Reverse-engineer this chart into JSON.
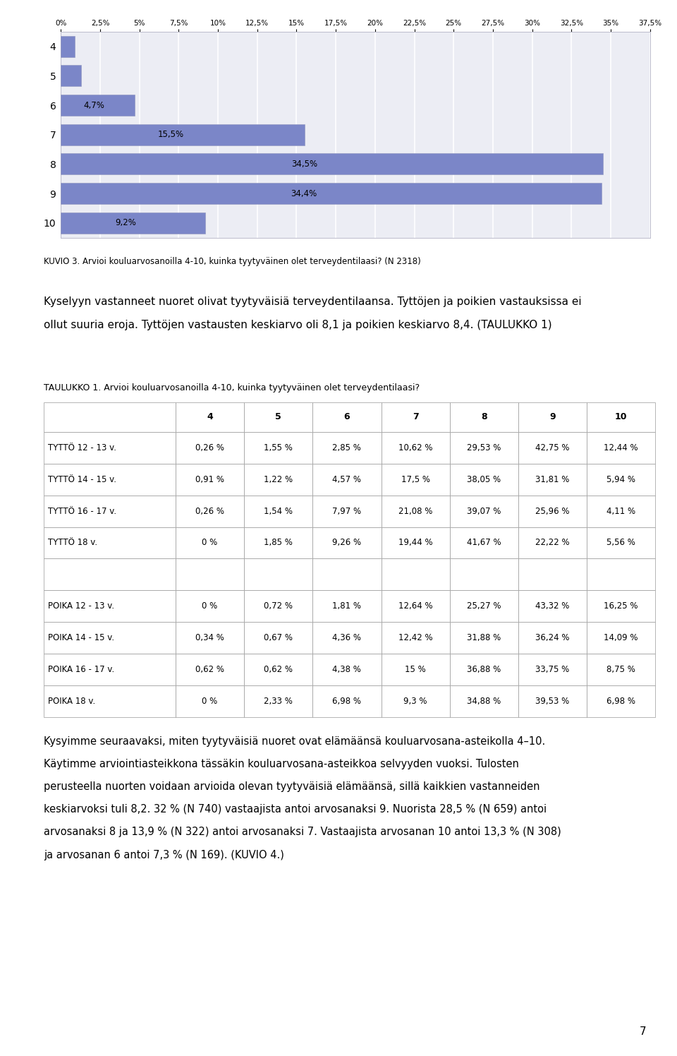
{
  "chart": {
    "categories": [
      "4",
      "5",
      "6",
      "7",
      "8",
      "9",
      "10"
    ],
    "values": [
      0.9,
      1.3,
      4.7,
      15.5,
      34.5,
      34.4,
      9.2
    ],
    "labels": [
      "",
      "",
      "4,7%",
      "15,5%",
      "34,5%",
      "34,4%",
      "9,2%"
    ],
    "bar_color": "#7B86C8",
    "xlim": [
      0,
      37.5
    ],
    "xticks": [
      0,
      2.5,
      5,
      7.5,
      10,
      12.5,
      15,
      17.5,
      20,
      22.5,
      25,
      27.5,
      30,
      32.5,
      35,
      37.5
    ],
    "xtick_labels": [
      "0%",
      "2,5%",
      "5%",
      "7,5%",
      "10%",
      "12,5%",
      "15%",
      "17,5%",
      "20%",
      "22,5%",
      "25%",
      "27,5%",
      "30%",
      "32,5%",
      "35%",
      "37,5%"
    ],
    "bg_color": "#ECEDF4",
    "outer_bg": "#D8D9E8"
  },
  "caption": "KUVIO 3. Arvioi kouluarvosanoilla 4-10, kuinka tyytyväinen olet terveydentilaasi? (N 2318)",
  "paragraph_line1": "Kyselyyn vastanneet nuoret olivat tyytyväisiä terveydentilaansa. Tyttöjen ja poikien vastauksissa ei",
  "paragraph_line2": "ollut suuria eroja. Tyttöjen vastausten keskiarvo oli 8,1 ja poikien keskiarvo 8,4. (TAULUKKO 1)",
  "table_title": "TAULUKKO 1. Arvioi kouluarvosanoilla 4-10, kuinka tyytyväinen olet terveydentilaasi?",
  "table_headers": [
    "",
    "4",
    "5",
    "6",
    "7",
    "8",
    "9",
    "10"
  ],
  "table_rows": [
    [
      "TYTTÖ 12 - 13 v.",
      "0,26 %",
      "1,55 %",
      "2,85 %",
      "10,62 %",
      "29,53 %",
      "42,75 %",
      "12,44 %"
    ],
    [
      "TYTTÖ 14 - 15 v.",
      "0,91 %",
      "1,22 %",
      "4,57 %",
      "17,5 %",
      "38,05 %",
      "31,81 %",
      "5,94 %"
    ],
    [
      "TYTTÖ 16 - 17 v.",
      "0,26 %",
      "1,54 %",
      "7,97 %",
      "21,08 %",
      "39,07 %",
      "25,96 %",
      "4,11 %"
    ],
    [
      "TYTTÖ 18 v.",
      "0 %",
      "1,85 %",
      "9,26 %",
      "19,44 %",
      "41,67 %",
      "22,22 %",
      "5,56 %"
    ],
    [
      "",
      "",
      "",
      "",
      "",
      "",
      "",
      ""
    ],
    [
      "POIKA 12 - 13 v.",
      "0 %",
      "0,72 %",
      "1,81 %",
      "12,64 %",
      "25,27 %",
      "43,32 %",
      "16,25 %"
    ],
    [
      "POIKA 14 - 15 v.",
      "0,34 %",
      "0,67 %",
      "4,36 %",
      "12,42 %",
      "31,88 %",
      "36,24 %",
      "14,09 %"
    ],
    [
      "POIKA 16 - 17 v.",
      "0,62 %",
      "0,62 %",
      "4,38 %",
      "15 %",
      "36,88 %",
      "33,75 %",
      "8,75 %"
    ],
    [
      "POIKA 18 v.",
      "0 %",
      "2,33 %",
      "6,98 %",
      "9,3 %",
      "34,88 %",
      "39,53 %",
      "6,98 %"
    ]
  ],
  "paragraph2_lines": [
    "Kysyimme seuraavaksi, miten tyytyväisiä nuoret ovat elämäänsä kouluarvosana-asteikolla 4–10.",
    "Käytimme arviointiasteikkona tässäkin kouluarvosana-asteikkoa selvyyden vuoksi. Tulosten",
    "perusteella nuorten voidaan arvioida olevan tyytyväisiä elämäänsä, sillä kaikkien vastanneiden",
    "keskiarvoksi tuli 8,2. 32 % (N 740) vastaajista antoi arvosanaksi 9. Nuorista 28,5 % (N 659) antoi",
    "arvosanaksi 8 ja 13,9 % (N 322) antoi arvosanaksi 7. Vastaajista arvosanan 10 antoi 13,3 % (N 308)",
    "ja arvosanan 6 antoi 7,3 % (N 169). (KUVIO 4.)"
  ],
  "page_number": "7",
  "background_color": "#FFFFFF"
}
